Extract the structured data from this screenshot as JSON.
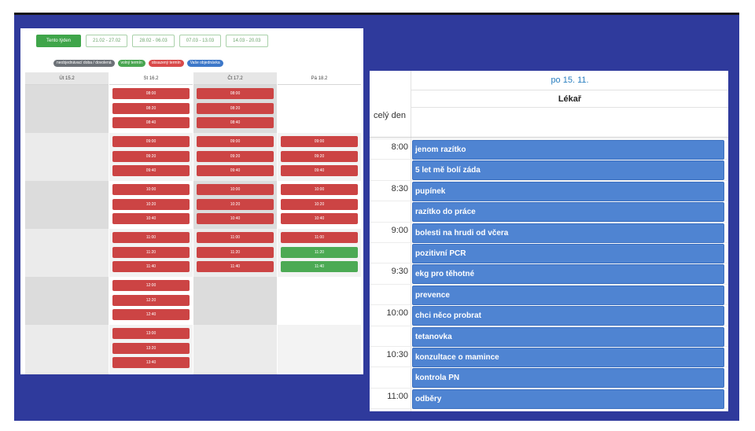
{
  "left": {
    "week_buttons": [
      "Tento týden",
      "21.02 - 27.02",
      "28.02 - 06.03",
      "07.03 - 13.03",
      "14.03 - 20.03"
    ],
    "legend": [
      {
        "label": "neobjednávací doba / dovolená",
        "color": "#6d7278"
      },
      {
        "label": "volný termín",
        "color": "#4aa652"
      },
      {
        "label": "obsazený termín",
        "color": "#d94a4a"
      },
      {
        "label": "Vaše objednávka",
        "color": "#3d78c9"
      }
    ],
    "days": [
      "Út 15.2",
      "St 16.2",
      "Čt 17.2",
      "Pá 18.2"
    ],
    "columns": [
      {
        "slots": []
      },
      {
        "slots": [
          {
            "time": "08:00",
            "status": "red"
          },
          {
            "time": "08:20",
            "status": "red"
          },
          {
            "time": "08:40",
            "status": "red"
          },
          {
            "time": "09:00",
            "status": "red"
          },
          {
            "time": "09:20",
            "status": "red"
          },
          {
            "time": "09:40",
            "status": "red"
          },
          {
            "time": "10:00",
            "status": "red"
          },
          {
            "time": "10:20",
            "status": "red"
          },
          {
            "time": "10:40",
            "status": "red"
          },
          {
            "time": "11:00",
            "status": "red"
          },
          {
            "time": "11:20",
            "status": "red"
          },
          {
            "time": "11:40",
            "status": "red"
          },
          {
            "time": "12:00",
            "status": "red"
          },
          {
            "time": "12:20",
            "status": "red"
          },
          {
            "time": "12:40",
            "status": "red"
          },
          {
            "time": "13:00",
            "status": "red"
          },
          {
            "time": "13:20",
            "status": "red"
          },
          {
            "time": "13:40",
            "status": "red"
          }
        ]
      },
      {
        "slots": [
          {
            "time": "08:00",
            "status": "red"
          },
          {
            "time": "08:20",
            "status": "red"
          },
          {
            "time": "08:40",
            "status": "red"
          },
          {
            "time": "09:00",
            "status": "red"
          },
          {
            "time": "09:20",
            "status": "red"
          },
          {
            "time": "09:40",
            "status": "red"
          },
          {
            "time": "10:00",
            "status": "red"
          },
          {
            "time": "10:20",
            "status": "red"
          },
          {
            "time": "10:40",
            "status": "red"
          },
          {
            "time": "11:00",
            "status": "red"
          },
          {
            "time": "11:20",
            "status": "red"
          },
          {
            "time": "11:40",
            "status": "red"
          }
        ]
      },
      {
        "slots": [
          {
            "time": "09:00",
            "status": "red"
          },
          {
            "time": "09:20",
            "status": "red"
          },
          {
            "time": "09:40",
            "status": "red"
          },
          {
            "time": "10:00",
            "status": "red"
          },
          {
            "time": "10:20",
            "status": "red"
          },
          {
            "time": "10:40",
            "status": "red"
          },
          {
            "time": "11:00",
            "status": "red"
          },
          {
            "time": "11:20",
            "status": "green"
          },
          {
            "time": "11:40",
            "status": "green"
          }
        ]
      }
    ]
  },
  "right": {
    "date": "po 15. 11.",
    "resource": "Lékař",
    "all_day": "celý den",
    "time_labels": [
      "8:00",
      "8:30",
      "9:00",
      "9:30",
      "10:00",
      "10:30",
      "11:00"
    ],
    "events": [
      "jenom razítko",
      "5 let mě bolí záda",
      "pupínek",
      "razítko do práce",
      "bolesti na hrudi od včera",
      "pozitivní PCR",
      "ekg pro těhotné",
      "prevence",
      "chci něco probrat",
      "tetanovka",
      "konzultace o mamince",
      "kontrola PN",
      "odběry"
    ]
  }
}
